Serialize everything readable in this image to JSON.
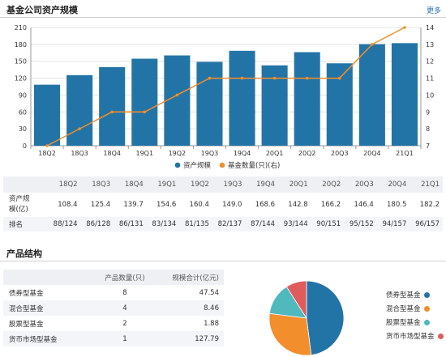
{
  "asset_section": {
    "title": "基金公司资产规模",
    "more_label": "更多"
  },
  "chart_data": {
    "type": "bar",
    "categories": [
      "18Q2",
      "18Q3",
      "18Q4",
      "19Q1",
      "19Q2",
      "19Q3",
      "19Q4",
      "20Q1",
      "20Q2",
      "20Q3",
      "20Q4",
      "21Q1"
    ],
    "series": [
      {
        "name": "资产规模",
        "type": "bar",
        "axis": "left",
        "color": "#2374a6",
        "values": [
          108.4,
          125.4,
          139.7,
          154.6,
          160.4,
          149.0,
          168.6,
          142.8,
          166.2,
          146.4,
          180.5,
          182.2
        ]
      },
      {
        "name": "基金数量(只)(右)",
        "type": "line",
        "axis": "right",
        "color": "#f28e2b",
        "values": [
          7,
          8,
          9,
          9,
          10,
          11,
          11,
          11,
          11,
          11,
          13,
          14
        ]
      }
    ],
    "ylim_left": [
      0,
      210
    ],
    "yticks_left": [
      0,
      30,
      60,
      90,
      120,
      150,
      180,
      210
    ],
    "ylim_right": [
      7,
      14
    ],
    "yticks_right": [
      7,
      8,
      9,
      10,
      11,
      12,
      13,
      14
    ],
    "grid": true,
    "legend_position": "bottom-center"
  },
  "data_table": {
    "headers": [
      "18Q2",
      "18Q3",
      "18Q4",
      "19Q1",
      "19Q2",
      "19Q3",
      "19Q4",
      "20Q1",
      "20Q2",
      "20Q3",
      "20Q4",
      "21Q1"
    ],
    "assets_label_line1": "资产规",
    "assets_label_line2": "模(亿)",
    "assets": [
      "108.4",
      "125.4",
      "139.7",
      "154.6",
      "160.4",
      "149.0",
      "168.6",
      "142.8",
      "166.2",
      "146.4",
      "180.5",
      "182.2"
    ],
    "rank_label": "排名",
    "ranks": [
      "88/124",
      "86/128",
      "86/131",
      "83/134",
      "81/135",
      "82/137",
      "87/144",
      "93/144",
      "90/151",
      "95/152",
      "94/157",
      "96/157"
    ]
  },
  "product_section": {
    "title": "产品结构",
    "col_count": "产品数量(只)",
    "col_scale": "规模合计(亿元)",
    "rows": [
      {
        "name": "债券型基金",
        "count": "8",
        "scale": "47.54",
        "value": 47.54,
        "color": "#2374a6"
      },
      {
        "name": "混合型基金",
        "count": "4",
        "scale": "8.46",
        "value": 8.46,
        "color": "#f28e2b"
      },
      {
        "name": "股票型基金",
        "count": "2",
        "scale": "1.88",
        "value": 1.88,
        "color": "#4fb9bd"
      },
      {
        "name": "货币市场型基金",
        "count": "1",
        "scale": "127.79",
        "value": 127.79,
        "color": "#e05c5c"
      }
    ]
  },
  "pie_chart": {
    "type": "pie",
    "slices": [
      {
        "name": "债券型基金",
        "value": 48,
        "color": "#2374a6"
      },
      {
        "name": "混合型基金",
        "value": 29,
        "color": "#f28e2b"
      },
      {
        "name": "股票型基金",
        "value": 14,
        "color": "#4fb9bd"
      },
      {
        "name": "货币市场型基金",
        "value": 9,
        "color": "#e05c5c"
      }
    ],
    "value_unit": "percent of circle (estimated)"
  }
}
